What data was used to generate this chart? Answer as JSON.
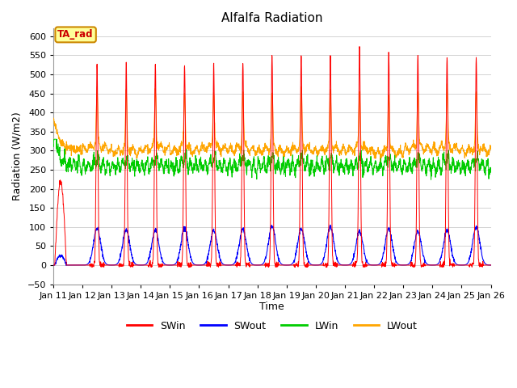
{
  "title": "Alfalfa Radiation",
  "xlabel": "Time",
  "ylabel": "Radiation (W/m2)",
  "ylim": [
    -50,
    620
  ],
  "yticks": [
    -50,
    0,
    50,
    100,
    150,
    200,
    250,
    300,
    350,
    400,
    450,
    500,
    550,
    600
  ],
  "colors": {
    "SWin": "#ff0000",
    "SWout": "#0000ff",
    "LWin": "#00cc00",
    "LWout": "#ffa500"
  },
  "plot_bg": "#ffffff",
  "fig_bg": "#ffffff",
  "grid_color": "#dddddd",
  "annotation_box": {
    "text": "TA_rad",
    "facecolor": "#ffff99",
    "edgecolor": "#cc8800",
    "textcolor": "#cc0000"
  }
}
